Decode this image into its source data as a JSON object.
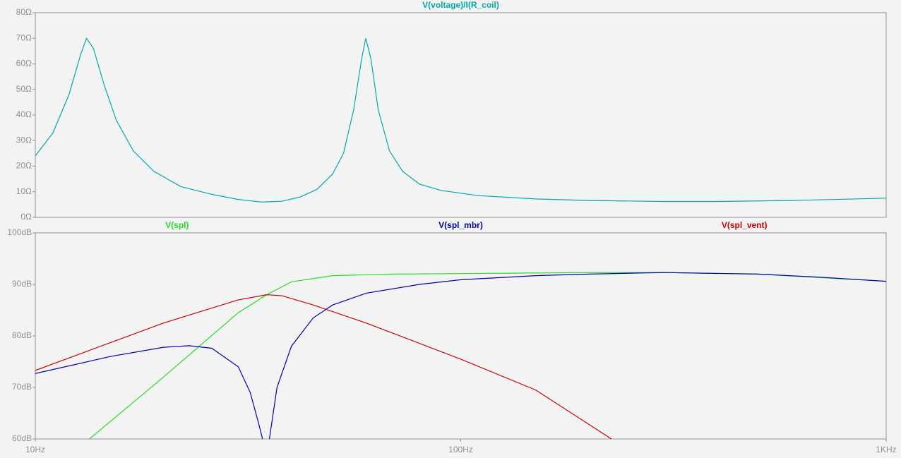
{
  "chart_data": [
    {
      "type": "line",
      "xscale": "log",
      "xlim": [
        10,
        1000
      ],
      "ylim": [
        0,
        80
      ],
      "yticks": [
        {
          "value": 0,
          "label": "0Ω"
        },
        {
          "value": 10,
          "label": "10Ω"
        },
        {
          "value": 20,
          "label": "20Ω"
        },
        {
          "value": 30,
          "label": "30Ω"
        },
        {
          "value": 40,
          "label": "40Ω"
        },
        {
          "value": 50,
          "label": "50Ω"
        },
        {
          "value": 60,
          "label": "60Ω"
        },
        {
          "value": 70,
          "label": "70Ω"
        },
        {
          "value": 80,
          "label": "80Ω"
        }
      ],
      "series": [
        {
          "name": "V(voltage)/I(R_coil)",
          "color": "#00a8a8",
          "x": [
            10,
            11,
            12,
            12.8,
            13.2,
            13.7,
            14.5,
            15.5,
            17,
            19,
            22,
            26,
            30,
            34,
            38,
            42,
            46,
            50,
            53,
            56,
            58.5,
            59.8,
            61.5,
            64,
            68,
            73,
            80,
            90,
            110,
            150,
            200,
            300,
            400,
            600,
            1000
          ],
          "values": [
            24,
            33,
            48,
            64,
            70,
            66,
            52,
            38,
            26,
            18,
            12,
            9,
            7,
            6,
            6.3,
            8,
            11,
            17,
            25,
            42,
            62,
            70,
            62,
            42,
            26,
            18,
            13,
            10.5,
            8.5,
            7.2,
            6.6,
            6.2,
            6.2,
            6.6,
            7.5
          ]
        }
      ]
    },
    {
      "type": "line",
      "xscale": "log",
      "xlim": [
        10,
        1000
      ],
      "xticks": [
        {
          "value": 10,
          "label": "10Hz"
        },
        {
          "value": 100,
          "label": "100Hz"
        },
        {
          "value": 1000,
          "label": "1KHz"
        }
      ],
      "ylim": [
        60,
        100
      ],
      "yticks": [
        {
          "value": 60,
          "label": "60dB"
        },
        {
          "value": 70,
          "label": "70dB"
        },
        {
          "value": 80,
          "label": "80dB"
        },
        {
          "value": 90,
          "label": "90dB"
        },
        {
          "value": 100,
          "label": "100dB"
        }
      ],
      "series": [
        {
          "name": "V(spl)",
          "color": "#22dd22",
          "x": [
            13.4,
            20,
            30,
            35,
            40,
            50,
            70,
            100,
            200,
            300,
            500,
            1000
          ],
          "values": [
            60,
            72,
            84.5,
            88,
            90.5,
            91.7,
            92,
            92.1,
            92.3,
            92.3,
            92,
            90.6
          ]
        },
        {
          "name": "V(spl_mbr)",
          "color": "#0000aa",
          "x": [
            10,
            15,
            20,
            23,
            26,
            30,
            32,
            33.5,
            34.2,
            34.8,
            35.5,
            37,
            40,
            45,
            50,
            60,
            80,
            100,
            150,
            200,
            300,
            500,
            700,
            1000
          ],
          "values": [
            72.7,
            76,
            77.8,
            78.1,
            77.6,
            74,
            69,
            63,
            60,
            null,
            60,
            70,
            78,
            83.5,
            86,
            88.3,
            90,
            90.9,
            91.7,
            92,
            92.3,
            92,
            91.4,
            90.6
          ]
        },
        {
          "name": "V(spl_vent)",
          "color": "#cc0000",
          "x": [
            10,
            20,
            30,
            35,
            38,
            45,
            60,
            100,
            150,
            226
          ],
          "values": [
            73.3,
            82.5,
            87,
            88,
            87.8,
            86,
            82.5,
            75.5,
            69.5,
            60
          ]
        }
      ]
    }
  ]
}
